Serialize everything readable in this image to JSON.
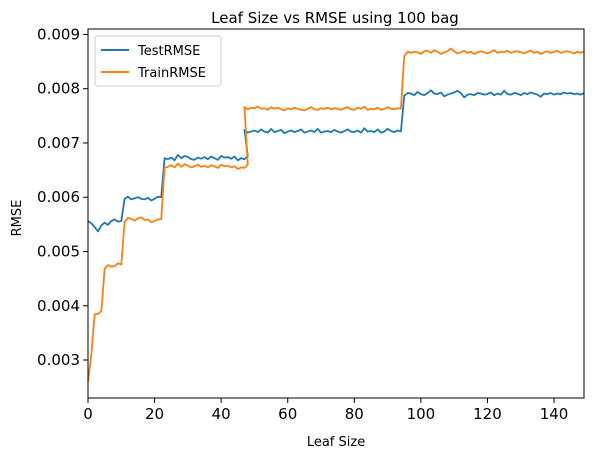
{
  "chart_data": {
    "type": "line",
    "title": "Leaf Size vs RMSE using 100 bag",
    "xlabel": "Leaf Size",
    "ylabel": "RMSE",
    "xlim": [
      0,
      149
    ],
    "ylim": [
      0.0023,
      0.0091
    ],
    "xticks": [
      0,
      20,
      40,
      60,
      80,
      100,
      120,
      140
    ],
    "yticks": [
      0.003,
      0.004,
      0.005,
      0.006,
      0.007,
      0.008,
      0.009
    ],
    "grid": false,
    "legend_position": "top-left",
    "series": [
      {
        "name": "TestRMSE",
        "color": "#1f77b4",
        "segments": [
          {
            "x_start": 0,
            "values": [
              0.00556,
              0.00552,
              0.00545,
              0.00537,
              0.00548,
              0.00553,
              0.00549,
              0.00556,
              0.00559,
              0.00555,
              0.00556
            ]
          },
          {
            "x_start": 11,
            "values": [
              0.00597,
              0.00601,
              0.00596,
              0.00598,
              0.006,
              0.00597,
              0.00596,
              0.00599,
              0.00594,
              0.00597,
              0.00601,
              0.006
            ]
          },
          {
            "x_start": 23,
            "values": [
              0.00672,
              0.0067,
              0.00673,
              0.00668,
              0.00678,
              0.00672,
              0.00676,
              0.00674,
              0.0067,
              0.00669,
              0.00673,
              0.00671,
              0.00674,
              0.0067,
              0.00675,
              0.00672,
              0.00669,
              0.00676,
              0.00673,
              0.00674,
              0.00671,
              0.00675,
              0.00668,
              0.00672,
              0.0067,
              0.00676
            ]
          },
          {
            "x_start": 47,
            "values": [
              0.00724,
              0.00719,
              0.00721,
              0.00723,
              0.0072,
              0.00725,
              0.00721,
              0.00719,
              0.00726,
              0.0072,
              0.00722,
              0.00724,
              0.00718,
              0.00721,
              0.00723,
              0.0072,
              0.00722,
              0.00725,
              0.00719,
              0.00721,
              0.00723,
              0.0072,
              0.00726,
              0.00719,
              0.00721,
              0.00722,
              0.0072,
              0.00724,
              0.00721,
              0.00719,
              0.00722,
              0.00725,
              0.00721,
              0.0072,
              0.00723,
              0.00719,
              0.00727,
              0.00721,
              0.00722,
              0.0072,
              0.00725,
              0.00719,
              0.00721,
              0.00726,
              0.00722,
              0.0072,
              0.00723,
              0.00721
            ]
          },
          {
            "x_start": 95,
            "values": [
              0.00787,
              0.00792,
              0.00791,
              0.00788,
              0.00794,
              0.0079,
              0.00788,
              0.00792,
              0.00797,
              0.00791,
              0.0079,
              0.00793,
              0.00786,
              0.00789,
              0.00791,
              0.00793,
              0.00796,
              0.00792,
              0.00784,
              0.00789,
              0.0079,
              0.00788,
              0.00792,
              0.00791,
              0.00789,
              0.0079,
              0.00793,
              0.00788,
              0.00791,
              0.00789,
              0.00796,
              0.0079,
              0.00789,
              0.00792,
              0.00791,
              0.00788,
              0.00792,
              0.0079,
              0.00793,
              0.00791,
              0.00789,
              0.00785,
              0.00791,
              0.0079,
              0.00792,
              0.00789,
              0.00791,
              0.0079,
              0.00793,
              0.00791,
              0.00792,
              0.0079,
              0.00791,
              0.00789,
              0.00792
            ]
          }
        ]
      },
      {
        "name": "TrainRMSE",
        "color": "#ff7f0e",
        "segments": [
          {
            "x_start": 0,
            "values": [
              0.0026,
              0.0031,
              0.00384,
              0.00385,
              0.0039,
              0.00468,
              0.00475,
              0.00472,
              0.00473,
              0.00478,
              0.00476
            ]
          },
          {
            "x_start": 11,
            "values": [
              0.00555,
              0.00562,
              0.0056,
              0.00557,
              0.00561,
              0.00563,
              0.00558,
              0.00559,
              0.00554,
              0.00556,
              0.00559,
              0.0056
            ]
          },
          {
            "x_start": 23,
            "values": [
              0.00654,
              0.00656,
              0.00659,
              0.00655,
              0.00662,
              0.00656,
              0.00661,
              0.00658,
              0.00655,
              0.00657,
              0.0066,
              0.00656,
              0.00658,
              0.00655,
              0.00659,
              0.00657,
              0.00654,
              0.0066,
              0.00657,
              0.00658,
              0.00655,
              0.00657,
              0.00652,
              0.00655,
              0.00654,
              0.0066
            ]
          },
          {
            "x_start": 47,
            "values": [
              0.00766,
              0.00762,
              0.00765,
              0.00764,
              0.00767,
              0.00763,
              0.00764,
              0.00761,
              0.00766,
              0.00763,
              0.00765,
              0.00762,
              0.0076,
              0.00764,
              0.00762,
              0.00765,
              0.00763,
              0.00761,
              0.0076,
              0.00763,
              0.00766,
              0.00762,
              0.00761,
              0.00764,
              0.00763,
              0.00765,
              0.00762,
              0.00764,
              0.00763,
              0.00761,
              0.00764,
              0.00766,
              0.00762,
              0.00761,
              0.00765,
              0.00763,
              0.00767,
              0.00761,
              0.00763,
              0.00762,
              0.00765,
              0.00761,
              0.00763,
              0.00766,
              0.00763,
              0.00762,
              0.00764,
              0.00763
            ]
          },
          {
            "x_start": 95,
            "values": [
              0.0086,
              0.00868,
              0.00866,
              0.00868,
              0.00867,
              0.00864,
              0.00869,
              0.0087,
              0.00866,
              0.00871,
              0.00868,
              0.00864,
              0.00867,
              0.00869,
              0.00874,
              0.00869,
              0.00865,
              0.00867,
              0.0087,
              0.00866,
              0.00868,
              0.00864,
              0.00867,
              0.00869,
              0.00867,
              0.00865,
              0.00868,
              0.00871,
              0.00866,
              0.00868,
              0.00867,
              0.0087,
              0.00866,
              0.00868,
              0.00869,
              0.00867,
              0.00865,
              0.00868,
              0.0087,
              0.00866,
              0.00868,
              0.00864,
              0.00867,
              0.00869,
              0.00866,
              0.00868,
              0.0087,
              0.00866,
              0.00868,
              0.00869,
              0.00867,
              0.00865,
              0.00868,
              0.00866,
              0.00869
            ]
          }
        ]
      }
    ]
  }
}
